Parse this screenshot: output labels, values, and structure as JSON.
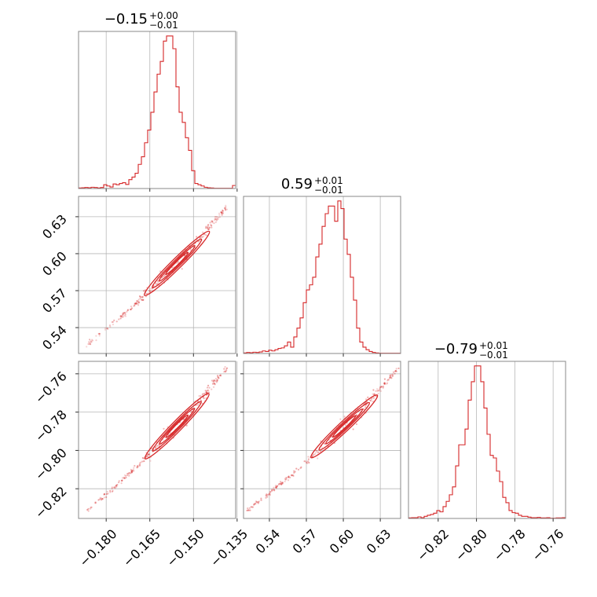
{
  "chart_data": {
    "type": "corner",
    "color": "#d62728",
    "parameters": [
      {
        "title": {
          "median": "−0.15",
          "plus": "+0.00",
          "minus": "−0.01"
        },
        "median": -0.15,
        "range": [
          -0.1895,
          -0.1355
        ],
        "ticks": [
          {
            "value": -0.18,
            "label": "−0.180"
          },
          {
            "value": -0.165,
            "label": "−0.165"
          },
          {
            "value": -0.15,
            "label": "−0.150"
          },
          {
            "value": -0.135,
            "label": "−0.135"
          }
        ],
        "histogram": {
          "start": -0.1895,
          "step": 0.00108,
          "counts": [
            0.2,
            0.3,
            0.4,
            0.3,
            0.5,
            0.4,
            0.2,
            0.4,
            1.5,
            1.0,
            0.6,
            1.8,
            1.5,
            2.0,
            2.3,
            1.6,
            3.5,
            4.5,
            6.0,
            9.5,
            12.5,
            18,
            23,
            30,
            38,
            45,
            50,
            58,
            60,
            60,
            55,
            40,
            30,
            26,
            20,
            15,
            7,
            2,
            1.5,
            1.0,
            0.5,
            0.3,
            0.2,
            0.1,
            0.1,
            0.1,
            0.1,
            0.1,
            0.1,
            1.2
          ]
        }
      },
      {
        "title": {
          "median": "0.59",
          "plus": "+0.01",
          "minus": "−0.01"
        },
        "median": 0.59,
        "range": [
          0.519,
          0.6465
        ],
        "ticks": [
          {
            "value": 0.54,
            "label": "0.54"
          },
          {
            "value": 0.57,
            "label": "0.57"
          },
          {
            "value": 0.6,
            "label": "0.60"
          },
          {
            "value": 0.63,
            "label": "0.63"
          }
        ],
        "histogram": {
          "start": 0.519,
          "step": 0.00255,
          "counts": [
            0.2,
            0.4,
            0.3,
            0.5,
            0.4,
            0.6,
            1.0,
            0.8,
            1.3,
            1.0,
            1.5,
            2.0,
            2.2,
            3.0,
            4.5,
            2.5,
            6.5,
            10,
            14,
            20,
            25,
            27,
            30,
            38,
            43,
            50,
            55,
            58,
            58,
            52,
            60,
            57,
            45,
            39,
            30,
            21,
            10,
            4.5,
            2.5,
            1.5,
            0.8,
            0.4,
            0.2,
            0.1,
            0.1,
            0.1,
            0.1,
            0.1,
            0.1,
            0.1
          ]
        }
      },
      {
        "title": {
          "median": "−0.79",
          "plus": "+0.01",
          "minus": "−0.01"
        },
        "median": -0.79,
        "range": [
          -0.8355,
          -0.7535
        ],
        "ticks": [
          {
            "value": -0.82,
            "label": "−0.82"
          },
          {
            "value": -0.8,
            "label": "−0.80"
          },
          {
            "value": -0.78,
            "label": "−0.78"
          },
          {
            "value": -0.76,
            "label": "−0.76"
          }
        ],
        "histogram": {
          "start": -0.8355,
          "step": 0.00164,
          "counts": [
            0.2,
            0.3,
            0.3,
            0.6,
            0.3,
            0.8,
            1.2,
            1.5,
            2.0,
            3.0,
            2.5,
            4.5,
            6.5,
            9,
            12,
            20,
            28,
            28,
            34,
            45,
            52,
            58,
            58,
            52,
            42,
            32,
            24,
            23,
            18,
            14,
            8,
            6,
            3,
            2.2,
            2.0,
            1.2,
            0.8,
            0.8,
            0.5,
            0.3,
            0.3,
            0.4,
            0.2,
            0.2,
            0.3,
            0.1,
            0.1,
            0.2,
            0.2,
            0.3
          ]
        }
      }
    ],
    "correlations": [
      {
        "pair": [
          0,
          1
        ],
        "line": {
          "a": [
            -0.187,
            0.525
          ],
          "b": [
            -0.1385,
            0.638
          ]
        }
      },
      {
        "pair": [
          0,
          2
        ],
        "line": {
          "a": [
            -0.187,
            -0.832
          ],
          "b": [
            -0.1385,
            -0.757
          ]
        }
      },
      {
        "pair": [
          1,
          2
        ],
        "line": {
          "a": [
            0.521,
            -0.832
          ],
          "b": [
            0.645,
            -0.757
          ]
        }
      }
    ]
  }
}
